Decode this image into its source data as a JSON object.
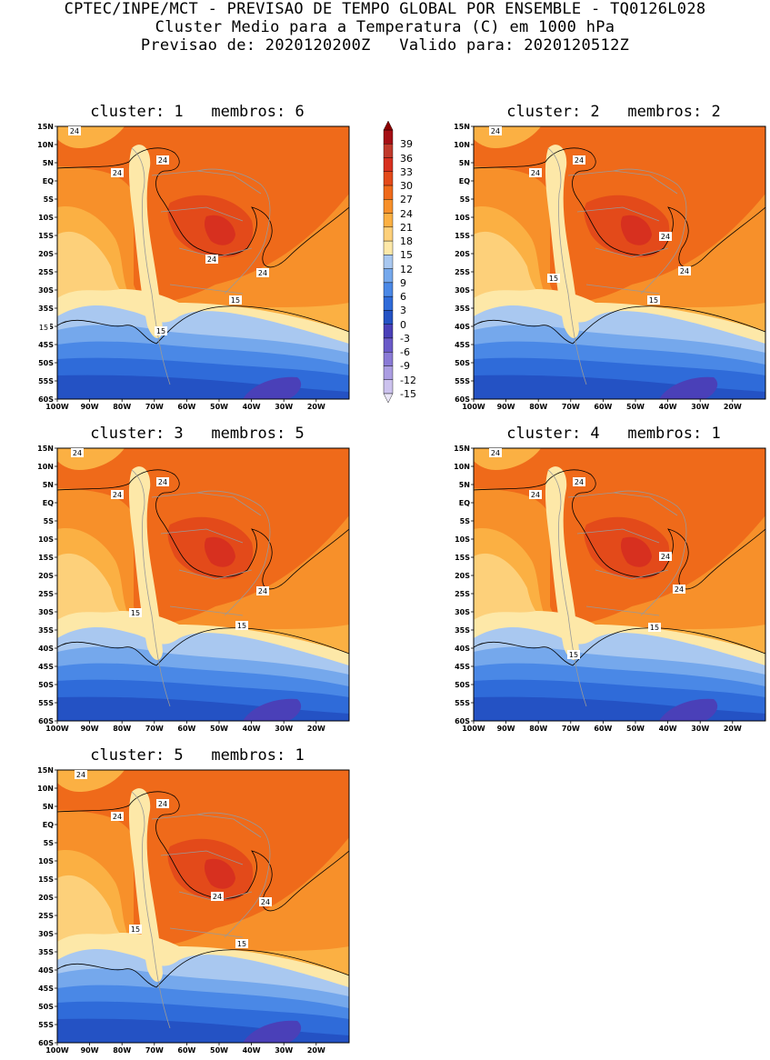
{
  "header": {
    "line1": "CPTEC/INPE/MCT - PREVISAO DE TEMPO GLOBAL POR ENSEMBLE - TQ0126L028",
    "line2": "Cluster Medio para a Temperatura (C) em 1000 hPa",
    "line3": "Previsao de: 2020120200Z   Valido para: 2020120512Z"
  },
  "lat_ticks": [
    "15N",
    "10N",
    "5N",
    "EQ",
    "5S",
    "10S",
    "15S",
    "20S",
    "25S",
    "30S",
    "35S",
    "40S",
    "45S",
    "50S",
    "55S",
    "60S"
  ],
  "lon_ticks": [
    "100W",
    "90W",
    "80W",
    "70W",
    "60W",
    "50W",
    "40W",
    "30W",
    "20W"
  ],
  "colorbar": {
    "labels": [
      "39",
      "36",
      "33",
      "30",
      "27",
      "24",
      "21",
      "18",
      "15",
      "12",
      "9",
      "6",
      "3",
      "0",
      "-3",
      "-6",
      "-9",
      "-12",
      "-15"
    ],
    "colors": [
      "#a50f15",
      "#c0392b",
      "#d7301f",
      "#e34a1a",
      "#ef6a1a",
      "#f7902a",
      "#fbb043",
      "#fdd07a",
      "#fde8a8",
      "#a9c8f0",
      "#75a8ec",
      "#4a88e6",
      "#2f6bd9",
      "#2452c4",
      "#4a40b8",
      "#6a5ac8",
      "#8a7ad6",
      "#ab9de2",
      "#ccc2ee"
    ]
  },
  "panels": [
    {
      "title": "cluster: 1   membros: 6",
      "labels": {
        "a": "24",
        "b": "24",
        "c": "24",
        "d": "24",
        "e": "24",
        "f": "15",
        "g": "15",
        "h": "15"
      }
    },
    {
      "title": "cluster: 2   membros: 2",
      "labels": {
        "a": "24",
        "b": "24",
        "c": "24",
        "d": "24",
        "e": "24",
        "f": "15",
        "g": "15"
      }
    },
    {
      "title": "cluster: 3   membros: 5",
      "labels": {
        "a": "24",
        "b": "24",
        "c": "24",
        "d": "24",
        "e": "15",
        "f": "15"
      }
    },
    {
      "title": "cluster: 4   membros: 1",
      "labels": {
        "a": "24",
        "b": "24",
        "c": "24",
        "d": "24",
        "e": "24",
        "f": "15",
        "g": "15"
      }
    },
    {
      "title": "cluster: 5   membros: 1",
      "labels": {
        "a": "24",
        "b": "24",
        "c": "24",
        "d": "24",
        "e": "24",
        "f": "15",
        "g": "15"
      }
    }
  ]
}
